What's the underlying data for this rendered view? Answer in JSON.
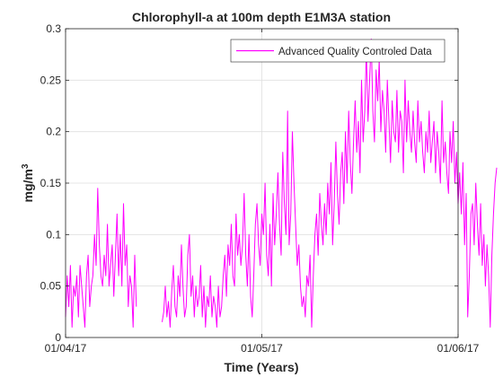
{
  "chart_data": {
    "type": "line",
    "title": "Chlorophyll-a at 100m depth E1M3A station",
    "xlabel": "Time (Years)",
    "ylabel": "mg/m",
    "ylabel_sup": "3",
    "xlim": [
      "2017-04-01",
      "2017-06-01"
    ],
    "ylim": [
      0,
      0.3
    ],
    "x_ticks": [
      "01/04/17",
      "01/05/17",
      "01/06/17"
    ],
    "y_ticks": [
      "0",
      "0.05",
      "0.1",
      "0.15",
      "0.2",
      "0.25",
      "0.3"
    ],
    "grid": true,
    "legend_position": "top-right",
    "series": [
      {
        "name": "Advanced Quality Controled Data",
        "color": "#ff00ff",
        "segments": [
          {
            "start": "2017-04-01T00:00",
            "step_hours": 6,
            "values": [
              0.02,
              0.06,
              0.03,
              0.07,
              0.01,
              0.05,
              0.04,
              0.06,
              0.02,
              0.07,
              0.05,
              0.03,
              0.01,
              0.06,
              0.08,
              0.03,
              0.05,
              0.06,
              0.1,
              0.07,
              0.145,
              0.09,
              0.06,
              0.05,
              0.08,
              0.06,
              0.11,
              0.05,
              0.07,
              0.09,
              0.04,
              0.08,
              0.12,
              0.06,
              0.1,
              0.05,
              0.13,
              0.07,
              0.09,
              0.03,
              0.06,
              0.05,
              0.01,
              0.08,
              0.03
            ]
          },
          {
            "start": "2017-04-16T00:00",
            "step_hours": 6,
            "values": [
              0.015,
              0.025,
              0.05,
              0.02,
              0.035,
              0.01,
              0.045,
              0.07,
              0.03,
              0.02,
              0.06,
              0.04,
              0.09,
              0.05,
              0.02,
              0.03,
              0.08,
              0.1,
              0.04,
              0.06,
              0.02,
              0.05,
              0.03,
              0.04,
              0.07,
              0.02,
              0.05,
              0.01,
              0.04,
              0.03,
              0.06,
              0.02,
              0.04,
              0.03,
              0.01,
              0.05,
              0.02,
              0.03,
              0.06,
              0.08,
              0.04,
              0.09,
              0.07,
              0.11,
              0.06,
              0.05,
              0.12,
              0.08,
              0.1,
              0.07,
              0.09,
              0.14,
              0.08,
              0.05,
              0.1,
              0.04,
              0.02,
              0.06,
              0.11,
              0.13,
              0.09,
              0.07,
              0.12,
              0.1,
              0.15,
              0.08,
              0.06,
              0.11,
              0.05,
              0.14,
              0.09,
              0.12,
              0.16,
              0.11,
              0.08,
              0.18,
              0.13,
              0.1,
              0.22,
              0.09,
              0.12,
              0.2,
              0.15,
              0.11,
              0.07,
              0.09,
              0.05,
              0.03,
              0.04,
              0.02,
              0.06,
              0.05,
              0.08,
              0.01,
              0.06,
              0.1,
              0.12,
              0.08,
              0.14,
              0.11,
              0.09,
              0.13,
              0.1,
              0.15,
              0.12,
              0.17,
              0.09,
              0.13,
              0.19,
              0.14,
              0.11,
              0.16,
              0.18,
              0.13,
              0.2,
              0.15,
              0.22,
              0.17,
              0.14,
              0.19,
              0.23,
              0.18,
              0.21,
              0.16,
              0.25,
              0.19,
              0.22,
              0.28,
              0.21,
              0.25,
              0.29,
              0.22,
              0.19,
              0.26,
              0.23,
              0.27,
              0.2,
              0.24,
              0.22,
              0.18,
              0.25,
              0.21,
              0.17,
              0.23,
              0.2,
              0.19,
              0.24,
              0.18,
              0.22,
              0.21,
              0.16,
              0.25,
              0.19,
              0.23,
              0.2,
              0.18,
              0.22,
              0.19,
              0.17,
              0.23,
              0.19,
              0.21,
              0.18,
              0.16,
              0.2,
              0.18,
              0.22,
              0.17,
              0.19,
              0.21,
              0.16,
              0.2,
              0.18,
              0.15,
              0.23,
              0.17,
              0.19,
              0.16,
              0.14,
              0.2,
              0.17,
              0.21,
              0.15,
              0.18,
              0.13,
              0.16,
              0.12,
              0.17,
              0.09,
              0.14,
              0.02,
              0.06,
              0.12,
              0.13,
              0.09,
              0.15,
              0.11,
              0.08,
              0.13,
              0.07,
              0.1,
              0.05,
              0.09,
              0.06,
              0.01,
              0.08,
              0.12,
              0.15,
              0.165
            ]
          }
        ]
      }
    ]
  }
}
